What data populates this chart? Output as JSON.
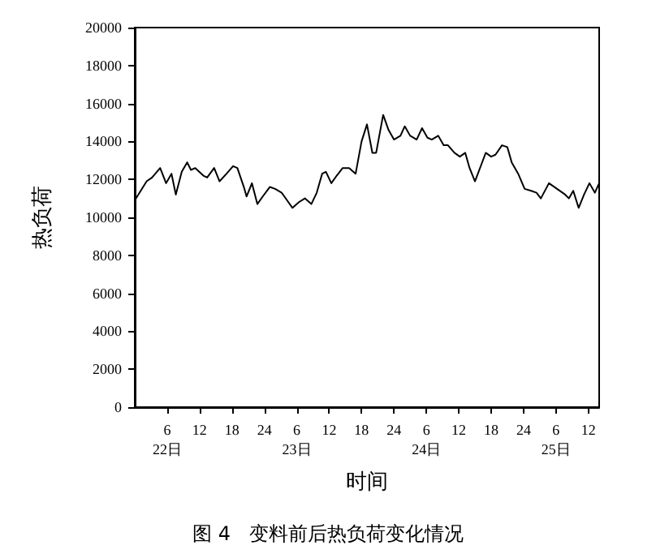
{
  "chart_data": {
    "type": "line",
    "title": "图 4   变料前后热负荷变化情况",
    "xlabel": "时间",
    "ylabel": "热负荷",
    "xlim": [
      "--01-22T00:00",
      "--01-25T14:00"
    ],
    "ylim": [
      0,
      20000
    ],
    "xticks": [
      {
        "value": "--01-22T06:00",
        "label": "6\n22日"
      },
      {
        "value": "--01-22T12:00",
        "label": "12"
      },
      {
        "value": "--01-22T18:00",
        "label": "18"
      },
      {
        "value": "--01-23T00:00",
        "label": "24"
      },
      {
        "value": "--01-23T06:00",
        "label": "6\n23日"
      },
      {
        "value": "--01-23T12:00",
        "label": "12"
      },
      {
        "value": "--01-23T18:00",
        "label": "18"
      },
      {
        "value": "--01-24T00:00",
        "label": "24"
      },
      {
        "value": "--01-24T06:00",
        "label": "6\n24日"
      },
      {
        "value": "--01-24T12:00",
        "label": "12"
      },
      {
        "value": "--01-24T18:00",
        "label": "18"
      },
      {
        "value": "--01-25T00:00",
        "label": "24"
      },
      {
        "value": "--01-25T06:00",
        "label": "6\n25日"
      },
      {
        "value": "--01-25T12:00",
        "label": "12"
      }
    ],
    "yticks": [
      0,
      2000,
      4000,
      6000,
      8000,
      10000,
      12000,
      14000,
      16000,
      18000,
      20000
    ],
    "grid": false,
    "marker": "none",
    "line_style": "solid",
    "series": [
      {
        "color": "#000000",
        "x": [
          "--01-22T00:00",
          "--01-22T02:12",
          "--01-22T03:12",
          "--01-22T04:42",
          "--01-22T05:48",
          "--01-22T06:48",
          "--01-22T07:36",
          "--01-22T08:42",
          "--01-22T09:42",
          "--01-22T10:24",
          "--01-22T11:12",
          "--01-22T12:42",
          "--01-22T13:24",
          "--01-22T14:42",
          "--01-22T15:42",
          "--01-22T17:00",
          "--01-22T18:12",
          "--01-22T19:00",
          "--01-22T20:12",
          "--01-22T20:42",
          "--01-22T21:42",
          "--01-22T22:42",
          "--01-22T23:42",
          "--01-23T01:00",
          "--01-23T02:00",
          "--01-23T03:12",
          "--01-23T03:42",
          "--01-23T05:12",
          "--01-23T06:24",
          "--01-23T07:30",
          "--01-23T08:42",
          "--01-23T09:42",
          "--01-23T10:42",
          "--01-23T11:24",
          "--01-23T12:24",
          "--01-23T13:24",
          "--01-23T14:30",
          "--01-23T15:42",
          "--01-23T16:54",
          "--01-23T18:00",
          "--01-23T19:00",
          "--01-23T20:00",
          "--01-23T20:42",
          "--01-23T22:00",
          "--01-23T23:00",
          "--01-24T00:00",
          "--01-24T01:12",
          "--01-24T02:00",
          "--01-24T03:00",
          "--01-24T04:12",
          "--01-24T05:12",
          "--01-24T06:12",
          "--01-24T07:00",
          "--01-24T08:12",
          "--01-24T09:12",
          "--01-24T10:00",
          "--01-24T11:12",
          "--01-24T12:12",
          "--01-24T13:12",
          "--01-24T14:00",
          "--01-24T15:00",
          "--01-24T16:12",
          "--01-24T17:00",
          "--01-24T18:00",
          "--01-24T18:48",
          "--01-24T20:00",
          "--01-24T21:00",
          "--01-24T21:48",
          "--01-24T23:00",
          "--01-25T00:12",
          "--01-25T01:24",
          "--01-25T02:24",
          "--01-25T03:12",
          "--01-25T04:42",
          "--01-25T06:12",
          "--01-25T07:42",
          "--01-25T08:24",
          "--01-25T09:12",
          "--01-25T10:12",
          "--01-25T11:12",
          "--01-25T12:12",
          "--01-25T13:12",
          "--01-25T14:00"
        ],
        "values": [
          10900,
          11900,
          12100,
          12600,
          11800,
          12300,
          11200,
          12400,
          12900,
          12500,
          12600,
          12200,
          12100,
          12600,
          11900,
          12300,
          12700,
          12600,
          11600,
          11100,
          11800,
          10700,
          11100,
          11600,
          11500,
          11300,
          11100,
          10500,
          10800,
          11000,
          10700,
          11300,
          12300,
          12400,
          11800,
          12200,
          12600,
          12600,
          12300,
          14000,
          14900,
          13400,
          13400,
          15400,
          14600,
          14100,
          14300,
          14800,
          14300,
          14100,
          14700,
          14200,
          14100,
          14300,
          13800,
          13800,
          13400,
          13200,
          13400,
          12600,
          11900,
          12800,
          13400,
          13200,
          13300,
          13800,
          13700,
          12900,
          12300,
          11500,
          11400,
          11300,
          11000,
          11800,
          11500,
          11200,
          11000,
          11400,
          10500,
          11200,
          11800,
          11300,
          11800
        ]
      }
    ]
  }
}
